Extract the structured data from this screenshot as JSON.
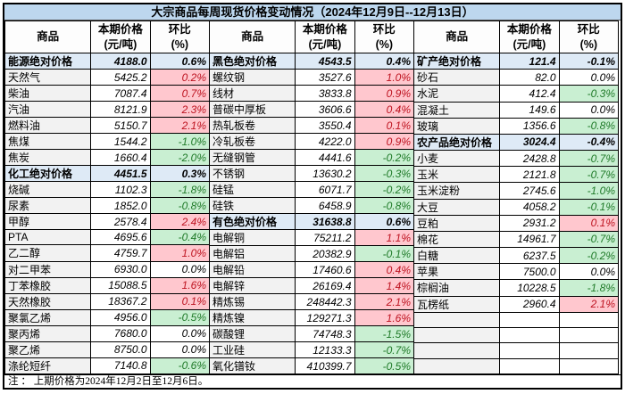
{
  "title": "大宗商品每周现货价格变动情况（2024年12月9日--12月13日）",
  "note": "注 ： 上期价格为2024年12月2日至12月6日。",
  "header": {
    "commodity": "商品",
    "price_line1": "本期价格",
    "price_line2": "(元/吨)",
    "change_line1": "环比",
    "change_line2": "(%)"
  },
  "colors": {
    "title_bg": "#BDD7EE",
    "section_row_bg": "#DEEAF6",
    "commodity_col_bg": "#F2F2F2",
    "increase_bg": "#FFC7CE",
    "increase_text": "#BE1320",
    "decrease_bg": "#C9EFD2",
    "decrease_text": "#1F7A28"
  },
  "groups": [
    {
      "rows": [
        {
          "name": "能源绝对价格",
          "price": "4188.0",
          "chg": "0.6%",
          "tone": "section"
        },
        {
          "name": "天然气",
          "price": "5425.2",
          "chg": "0.2%",
          "tone": "up"
        },
        {
          "name": "柴油",
          "price": "7087.4",
          "chg": "0.7%",
          "tone": "up"
        },
        {
          "name": "汽油",
          "price": "8121.9",
          "chg": "2.3%",
          "tone": "up"
        },
        {
          "name": "燃料油",
          "price": "5150.7",
          "chg": "2.1%",
          "tone": "up"
        },
        {
          "name": "焦煤",
          "price": "1544.2",
          "chg": "-1.0%",
          "tone": "down"
        },
        {
          "name": "焦炭",
          "price": "1660.4",
          "chg": "-2.0%",
          "tone": "down"
        },
        {
          "name": "化工绝对价格",
          "price": "4451.5",
          "chg": "0.3%",
          "tone": "section"
        },
        {
          "name": "烧碱",
          "price": "1102.3",
          "chg": "-1.8%",
          "tone": "down"
        },
        {
          "name": "尿素",
          "price": "1852.0",
          "chg": "-0.8%",
          "tone": "down"
        },
        {
          "name": "甲醇",
          "price": "2578.4",
          "chg": "2.4%",
          "tone": "up"
        },
        {
          "name": "PTA",
          "price": "4695.6",
          "chg": "-0.4%",
          "tone": "down"
        },
        {
          "name": "乙二醇",
          "price": "4759.7",
          "chg": "1.0%",
          "tone": "up"
        },
        {
          "name": "对二甲苯",
          "price": "6930.0",
          "chg": "0.0%",
          "tone": "flat"
        },
        {
          "name": "丁苯橡胶",
          "price": "15088.5",
          "chg": "1.6%",
          "tone": "up"
        },
        {
          "name": "天然橡胶",
          "price": "18367.2",
          "chg": "0.1%",
          "tone": "up"
        },
        {
          "name": "聚氯乙烯",
          "price": "4956.0",
          "chg": "-0.5%",
          "tone": "down"
        },
        {
          "name": "聚丙烯",
          "price": "7680.0",
          "chg": "0.0%",
          "tone": "flat"
        },
        {
          "name": "聚乙烯",
          "price": "8750.0",
          "chg": "0.0%",
          "tone": "flat"
        },
        {
          "name": "涤纶短纤",
          "price": "7140.8",
          "chg": "-0.6%",
          "tone": "down"
        }
      ]
    },
    {
      "rows": [
        {
          "name": "黑色绝对价格",
          "price": "4543.5",
          "chg": "0.4%",
          "tone": "section"
        },
        {
          "name": "螺纹钢",
          "price": "3527.6",
          "chg": "1.0%",
          "tone": "up"
        },
        {
          "name": "线材",
          "price": "3833.8",
          "chg": "0.9%",
          "tone": "up"
        },
        {
          "name": "普碳中厚板",
          "price": "3606.6",
          "chg": "0.4%",
          "tone": "up"
        },
        {
          "name": "热轧板卷",
          "price": "3550.4",
          "chg": "0.1%",
          "tone": "up"
        },
        {
          "name": "冷轧板卷",
          "price": "4222.0",
          "chg": "0.9%",
          "tone": "up"
        },
        {
          "name": "无缝钢管",
          "price": "4441.6",
          "chg": "-0.2%",
          "tone": "down"
        },
        {
          "name": "不锈钢",
          "price": "13630.2",
          "chg": "-0.3%",
          "tone": "down"
        },
        {
          "name": "硅锰",
          "price": "6071.7",
          "chg": "-0.2%",
          "tone": "down"
        },
        {
          "name": "硅铁",
          "price": "6458.9",
          "chg": "-0.8%",
          "tone": "down"
        },
        {
          "name": "有色绝对价格",
          "price": "31638.8",
          "chg": "0.6%",
          "tone": "section"
        },
        {
          "name": "电解铜",
          "price": "75211.2",
          "chg": "1.1%",
          "tone": "up"
        },
        {
          "name": "电解铝",
          "price": "20382.9",
          "chg": "-0.1%",
          "tone": "down"
        },
        {
          "name": "电解铅",
          "price": "17460.6",
          "chg": "0.4%",
          "tone": "up"
        },
        {
          "name": "电解锌",
          "price": "26169.4",
          "chg": "1.4%",
          "tone": "up"
        },
        {
          "name": "精炼锡",
          "price": "248442.3",
          "chg": "2.1%",
          "tone": "up"
        },
        {
          "name": "精炼镍",
          "price": "129271.3",
          "chg": "1.6%",
          "tone": "up"
        },
        {
          "name": "碳酸锂",
          "price": "74748.3",
          "chg": "-1.5%",
          "tone": "down"
        },
        {
          "name": "工业硅",
          "price": "12133.3",
          "chg": "-0.7%",
          "tone": "down"
        },
        {
          "name": "氧化镨钕",
          "price": "410399.7",
          "chg": "-0.5%",
          "tone": "down"
        }
      ]
    },
    {
      "rows": [
        {
          "name": "矿产绝对价格",
          "price": "121.4",
          "chg": "-0.1%",
          "tone": "section"
        },
        {
          "name": "砂石",
          "price": "82.0",
          "chg": "0.0%",
          "tone": "flat"
        },
        {
          "name": "水泥",
          "price": "412.4",
          "chg": "-0.3%",
          "tone": "down"
        },
        {
          "name": "混凝土",
          "price": "149.6",
          "chg": "0.0%",
          "tone": "flat"
        },
        {
          "name": "玻璃",
          "price": "1356.6",
          "chg": "-0.8%",
          "tone": "down"
        },
        {
          "name": "农产品绝对价格",
          "price": "3024.4",
          "chg": "-0.4%",
          "tone": "section"
        },
        {
          "name": "小麦",
          "price": "2428.8",
          "chg": "-0.7%",
          "tone": "down"
        },
        {
          "name": "玉米",
          "price": "2121.8",
          "chg": "-0.7%",
          "tone": "down"
        },
        {
          "name": "玉米淀粉",
          "price": "2745.6",
          "chg": "-1.0%",
          "tone": "down"
        },
        {
          "name": "大豆",
          "price": "4058.2",
          "chg": "-0.1%",
          "tone": "down"
        },
        {
          "name": "豆粕",
          "price": "2931.2",
          "chg": "0.1%",
          "tone": "up"
        },
        {
          "name": "棉花",
          "price": "14961.7",
          "chg": "-0.7%",
          "tone": "down"
        },
        {
          "name": "白糖",
          "price": "6237.5",
          "chg": "-0.2%",
          "tone": "down"
        },
        {
          "name": "苹果",
          "price": "7500.0",
          "chg": "0.0%",
          "tone": "flat"
        },
        {
          "name": "棕榈油",
          "price": "10228.5",
          "chg": "-1.8%",
          "tone": "down"
        },
        {
          "name": "瓦楞纸",
          "price": "2960.4",
          "chg": "2.1%",
          "tone": "up"
        },
        {
          "name": "",
          "price": "",
          "chg": "",
          "tone": "empty"
        },
        {
          "name": "",
          "price": "",
          "chg": "",
          "tone": "empty"
        },
        {
          "name": "",
          "price": "",
          "chg": "",
          "tone": "empty"
        },
        {
          "name": "",
          "price": "",
          "chg": "",
          "tone": "empty"
        }
      ]
    }
  ]
}
